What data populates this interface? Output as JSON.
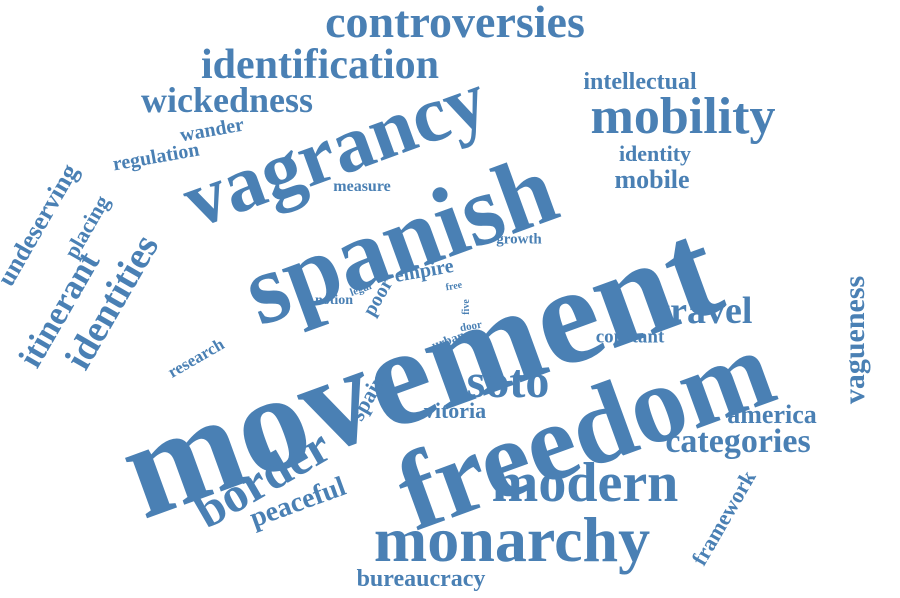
{
  "colors": {
    "word": "#4a80b4",
    "background": "#ffffff"
  },
  "words": {
    "movement": "movement",
    "freedom": "freedom",
    "spanish": "spanish",
    "vagrancy": "vagrancy",
    "monarchy": "monarchy",
    "modern": "modern",
    "mobility": "mobility",
    "soto": "soto",
    "border": "border",
    "controversies": "controversies",
    "identification": "identification",
    "wickedness": "wickedness",
    "identities": "identities",
    "itinerant": "itinerant",
    "travel": "travel",
    "categories": "categories",
    "vagueness": "vagueness",
    "undeserving": "undeserving",
    "peaceful": "peaceful",
    "bureaucracy": "bureaucracy",
    "intellectual": "intellectual",
    "identity": "identity",
    "mobile": "mobile",
    "regulation": "regulation",
    "wander": "wander",
    "placing": "placing",
    "measure": "measure",
    "growth": "growth",
    "empire": "empire",
    "poor": "poor",
    "notion": "notion",
    "legal": "legal",
    "free": "free",
    "five": "five",
    "door": "door",
    "urban": "urban",
    "constant": "constant",
    "research": "research",
    "spain": "spain",
    "vitoria": "vitoria",
    "america": "america",
    "framework": "framework"
  }
}
